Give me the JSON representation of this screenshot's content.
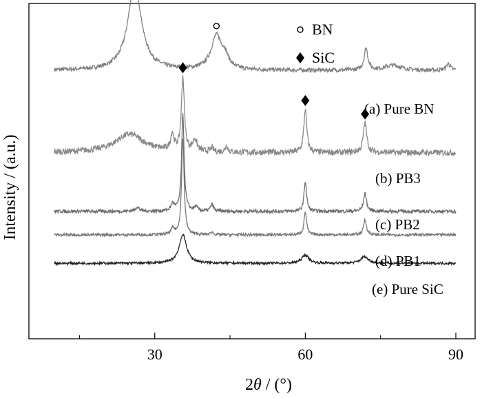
{
  "chart_data": {
    "type": "line",
    "xlabel_prefix": "2",
    "xlabel_var": "θ",
    "xlabel_suffix": " / (°)",
    "ylabel": "Intensity / (a.u.)",
    "xlim": [
      10,
      90
    ],
    "xticks": [
      30,
      60,
      90
    ],
    "grid": false,
    "legend": {
      "placement": "top-center",
      "items": [
        {
          "symbol": "open-circle",
          "label": "BN"
        },
        {
          "symbol": "filled-diamond",
          "label": "SiC"
        }
      ]
    },
    "series": [
      {
        "name": "(a) Pure BN",
        "color": "#808080",
        "baseline": 0.8,
        "noise": 0.006,
        "peaks": [
          [
            26.0,
            0.26,
            1.6
          ],
          [
            42.3,
            0.1,
            1.3
          ],
          [
            44.0,
            0.03,
            0.8
          ],
          [
            72.1,
            0.065,
            0.45
          ],
          [
            77.5,
            0.015,
            2.0
          ],
          [
            88.5,
            0.02,
            0.5
          ]
        ]
      },
      {
        "name": "(b) PB3",
        "color": "#888888",
        "baseline": 0.555,
        "noise": 0.009,
        "peaks": [
          [
            25.0,
            0.055,
            3.5
          ],
          [
            33.5,
            0.05,
            0.4
          ],
          [
            35.6,
            0.22,
            0.35
          ],
          [
            38.0,
            0.035,
            0.5
          ],
          [
            41.4,
            0.012,
            0.3
          ],
          [
            44.3,
            0.02,
            0.3
          ],
          [
            60.0,
            0.13,
            0.35
          ],
          [
            71.9,
            0.09,
            0.4
          ]
        ]
      },
      {
        "name": "(c) PB2",
        "color": "#6e6e6e",
        "baseline": 0.38,
        "noise": 0.005,
        "peaks": [
          [
            26.5,
            0.012,
            0.5
          ],
          [
            33.6,
            0.022,
            0.4
          ],
          [
            35.6,
            0.29,
            0.3
          ],
          [
            38.2,
            0.012,
            0.4
          ],
          [
            41.4,
            0.02,
            0.35
          ],
          [
            60.0,
            0.09,
            0.3
          ],
          [
            71.9,
            0.055,
            0.35
          ]
        ]
      },
      {
        "name": "(d) PB1",
        "color": "#777777",
        "baseline": 0.31,
        "noise": 0.004,
        "peaks": [
          [
            33.6,
            0.018,
            0.4
          ],
          [
            35.6,
            0.29,
            0.3
          ],
          [
            41.4,
            0.008,
            0.3
          ],
          [
            60.0,
            0.07,
            0.3
          ],
          [
            71.9,
            0.045,
            0.35
          ]
        ]
      },
      {
        "name": "(e) Pure SiC",
        "color": "#222222",
        "baseline": 0.225,
        "noise": 0.0035,
        "peaks": [
          [
            35.6,
            0.085,
            0.9
          ],
          [
            60.0,
            0.025,
            0.8
          ],
          [
            71.8,
            0.02,
            0.9
          ]
        ]
      }
    ],
    "markers": [
      {
        "symbol": "open-circle",
        "x": 26.0,
        "series": 0
      },
      {
        "symbol": "open-circle",
        "x": 42.3,
        "series": 0
      },
      {
        "symbol": "filled-diamond",
        "x": 35.6,
        "series": 1
      },
      {
        "symbol": "filled-diamond",
        "x": 60.0,
        "series": 1
      },
      {
        "symbol": "filled-diamond",
        "x": 71.9,
        "series": 1
      }
    ]
  }
}
